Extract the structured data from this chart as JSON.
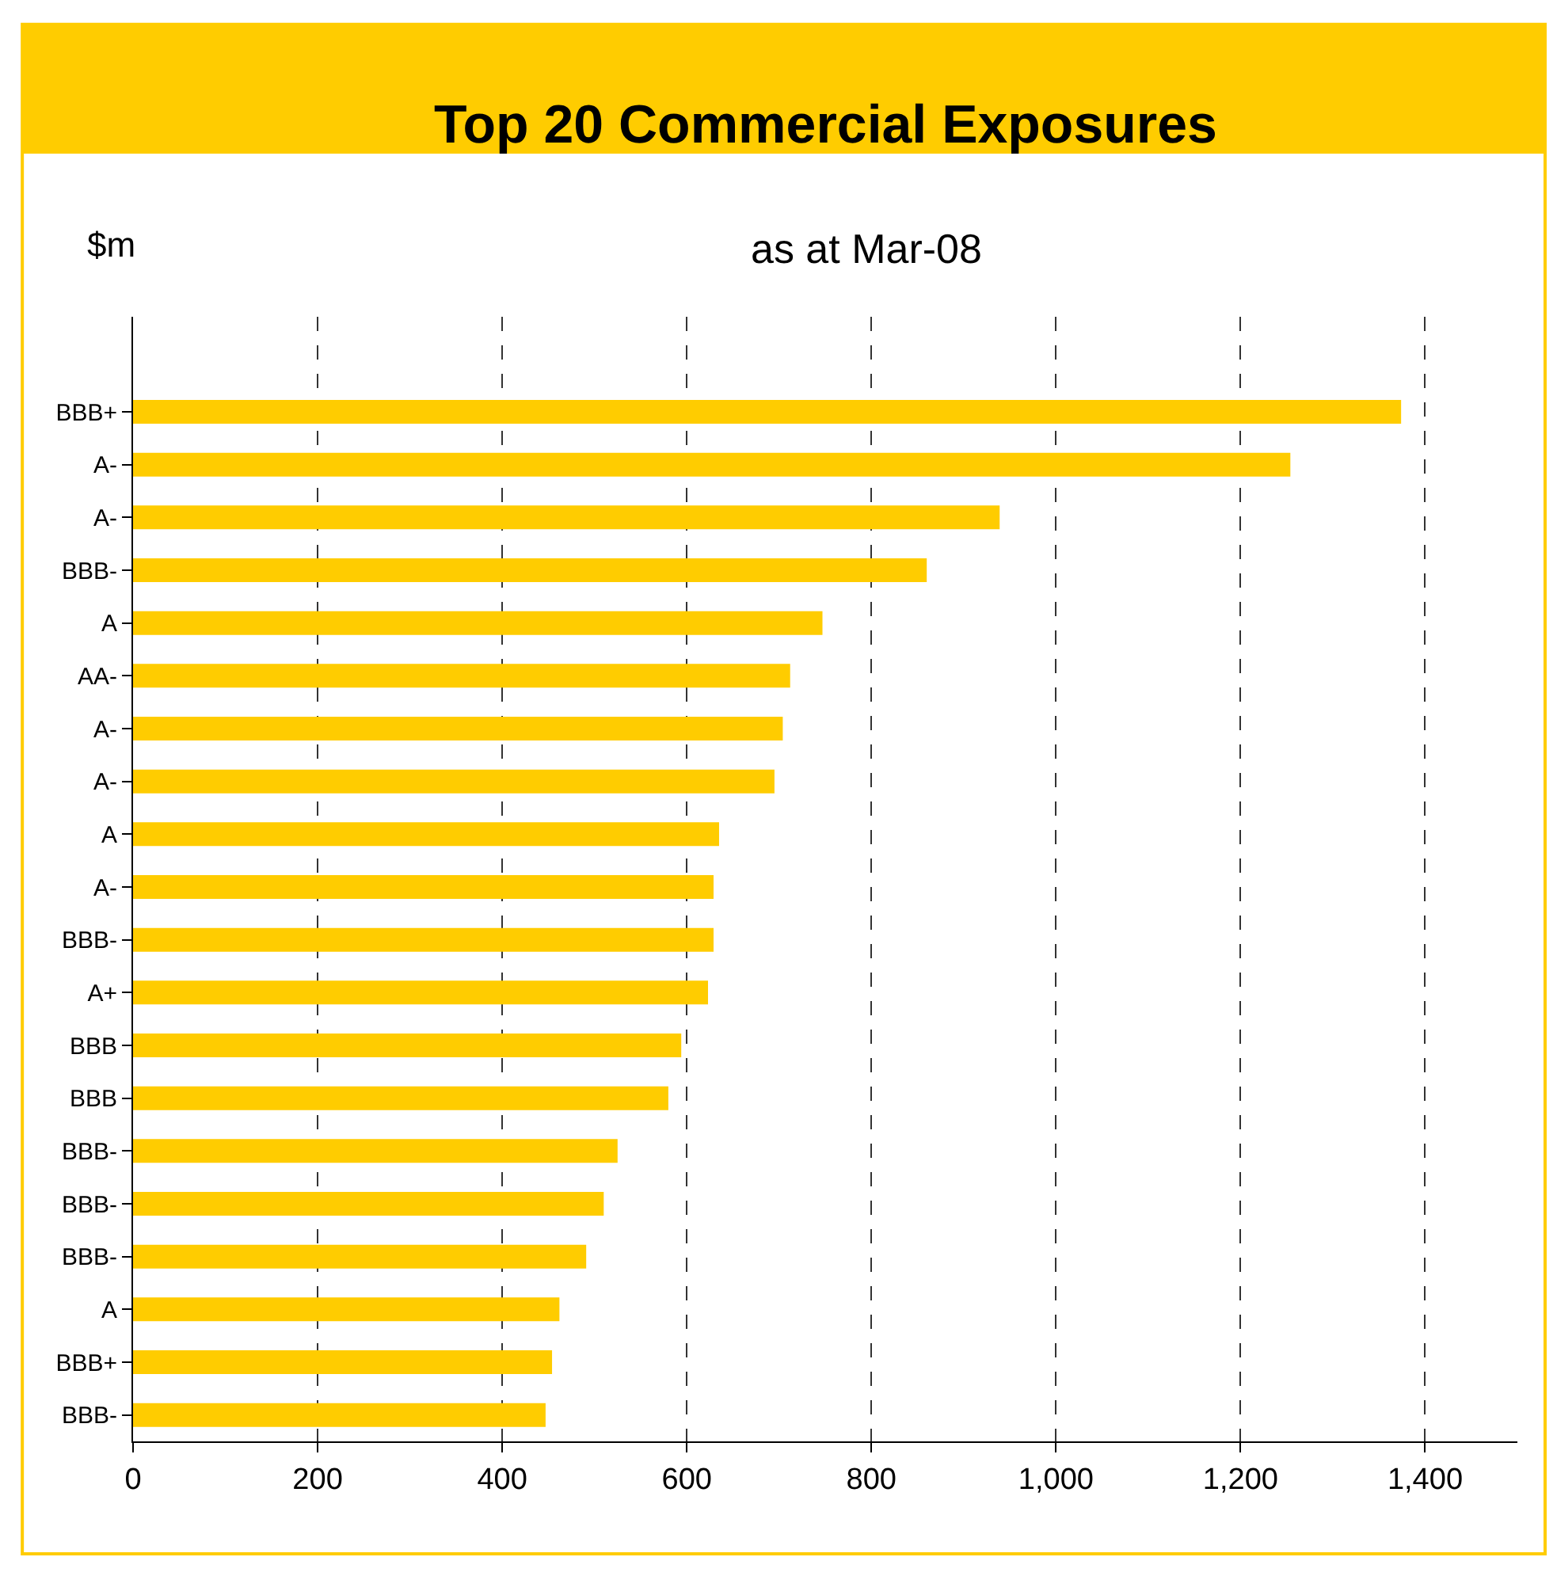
{
  "chart_data": {
    "type": "bar",
    "orientation": "horizontal",
    "title": "Top 20 Commercial Exposures",
    "subtitle": "as at Mar-08",
    "ylabel": "$m",
    "categories": [
      "BBB+",
      "A-",
      "A-",
      "BBB-",
      "A",
      "AA-",
      "A-",
      "A-",
      "A",
      "A-",
      "BBB-",
      "A+",
      "BBB",
      "BBB",
      "BBB-",
      "BBB-",
      "BBB-",
      "A",
      "BBB+",
      "BBB-"
    ],
    "values": [
      1374,
      1254,
      939,
      860,
      747,
      712,
      704,
      695,
      635,
      629,
      629,
      623,
      594,
      580,
      525,
      510,
      491,
      462,
      454,
      447
    ],
    "color": "#ffcc00",
    "xlim": [
      0,
      1500
    ],
    "xticks": [
      0,
      200,
      400,
      600,
      800,
      {
        "value": 1000,
        "label": "1,000"
      },
      {
        "value": 1200,
        "label": "1,200"
      },
      {
        "value": 1400,
        "label": "1,400"
      }
    ],
    "grid": "x",
    "legend": false
  }
}
